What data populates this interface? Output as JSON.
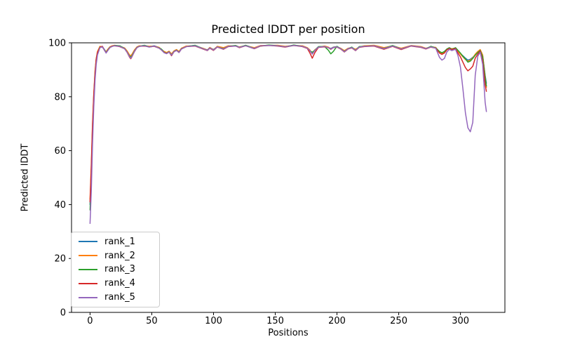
{
  "chart_data": {
    "type": "line",
    "title": "Predicted lDDT per position",
    "xlabel": "Positions",
    "ylabel": "Predicted lDDT",
    "xlim": [
      -15,
      336
    ],
    "ylim": [
      0,
      100
    ],
    "xticks": [
      0,
      50,
      100,
      150,
      200,
      250,
      300
    ],
    "yticks": [
      0,
      20,
      40,
      60,
      80,
      100
    ],
    "grid": false,
    "legend_position": "lower left",
    "x": [
      0,
      1,
      2,
      3,
      4,
      5,
      6,
      8,
      10,
      12,
      13,
      14,
      16,
      18,
      20,
      24,
      28,
      30,
      32,
      33,
      34,
      36,
      38,
      40,
      44,
      48,
      52,
      56,
      58,
      60,
      62,
      64,
      66,
      68,
      70,
      72,
      74,
      78,
      85,
      92,
      95,
      97,
      100,
      103,
      108,
      112,
      118,
      121,
      126,
      133,
      138,
      145,
      152,
      158,
      165,
      172,
      176,
      178,
      180,
      182,
      185,
      190,
      193,
      195,
      197,
      200,
      203,
      206,
      209,
      212,
      215,
      218,
      222,
      230,
      238,
      245,
      252,
      260,
      268,
      272,
      276,
      280,
      283,
      285,
      287,
      289,
      291,
      293,
      296,
      298,
      300,
      302,
      304,
      306,
      308,
      310,
      312,
      314,
      316,
      318,
      320,
      321
    ],
    "series": [
      {
        "name": "rank_1",
        "color": "#1f77b4",
        "values": [
          40,
          53,
          68,
          80,
          89,
          94,
          96.5,
          98.5,
          98.6,
          97.3,
          96.5,
          97.2,
          98.4,
          98.8,
          99,
          98.8,
          98,
          96.8,
          95.3,
          94.9,
          95.5,
          97.2,
          98.4,
          98.8,
          99,
          98.6,
          98.9,
          98.2,
          97.5,
          96.6,
          96.2,
          96.8,
          95.7,
          96.9,
          97.4,
          96.6,
          97.9,
          98.7,
          99,
          97.8,
          97.4,
          98.2,
          97.5,
          98.6,
          98,
          98.8,
          98.9,
          98.4,
          99,
          98.1,
          98.9,
          99.1,
          99,
          98.6,
          99.1,
          98.8,
          98.1,
          97.2,
          96.3,
          97.3,
          98.5,
          98.7,
          98.3,
          97.9,
          98.4,
          98.6,
          97.9,
          96.9,
          97.9,
          98.3,
          97.4,
          98.5,
          98.8,
          99,
          98,
          98.8,
          97.8,
          98.9,
          98.5,
          97.9,
          98.6,
          98.2,
          96.6,
          96.1,
          96.6,
          97.6,
          98.1,
          97.7,
          98.1,
          97,
          96,
          95.2,
          94.3,
          93.6,
          93.9,
          94.6,
          95.6,
          96.6,
          97.3,
          95.2,
          88,
          85
        ]
      },
      {
        "name": "rank_2",
        "color": "#ff7f0e",
        "values": [
          42,
          55,
          70,
          81,
          89.5,
          94.2,
          96.8,
          98.7,
          98.4,
          97.1,
          96.7,
          97.4,
          98.5,
          98.9,
          99.1,
          98.7,
          98.1,
          97,
          95.5,
          95.2,
          95.8,
          97.4,
          98.5,
          98.9,
          98.9,
          98.7,
          98.8,
          98.3,
          97.4,
          96.8,
          96.4,
          96.9,
          95.9,
          97,
          97.5,
          96.8,
          98,
          98.8,
          98.9,
          97.9,
          97.3,
          98.3,
          97.4,
          98.7,
          98.2,
          98.9,
          98.8,
          98.5,
          98.9,
          98.2,
          99,
          99,
          99.1,
          98.7,
          99,
          98.9,
          98.2,
          97.4,
          96,
          97.4,
          98.4,
          98.8,
          98.4,
          97.7,
          98.3,
          98.5,
          98,
          97.1,
          98,
          98.2,
          97.6,
          98.4,
          98.9,
          99.1,
          98.2,
          98.9,
          98,
          99,
          98.6,
          98,
          98.5,
          98.3,
          96.4,
          95.9,
          96.4,
          97.5,
          98,
          97.8,
          98,
          96.8,
          95.8,
          94.8,
          93.8,
          93.2,
          93.6,
          94.4,
          95.8,
          96.8,
          97.5,
          95.5,
          87.5,
          83.5
        ]
      },
      {
        "name": "rank_3",
        "color": "#2ca02c",
        "values": [
          38,
          51,
          66,
          79,
          88,
          93.5,
          96.2,
          98.4,
          98.5,
          97.2,
          96.4,
          97.1,
          98.3,
          98.7,
          99,
          98.9,
          97.9,
          96.6,
          95,
          94.6,
          95.3,
          97,
          98.3,
          98.7,
          99.1,
          98.5,
          98.8,
          98.1,
          97.6,
          96.5,
          96.1,
          96.7,
          95.5,
          96.8,
          97.3,
          96.5,
          97.8,
          98.6,
          99.1,
          97.7,
          97.2,
          98.1,
          97.3,
          98.5,
          97.8,
          98.7,
          99,
          98.3,
          99.1,
          97.9,
          98.8,
          99.2,
          98.9,
          98.5,
          99.2,
          98.7,
          98,
          97,
          96.5,
          97.2,
          98.6,
          98.6,
          97.3,
          95.9,
          96.8,
          98.7,
          97.8,
          96.8,
          97.8,
          98.4,
          97.2,
          98.6,
          98.7,
          98.9,
          97.9,
          99,
          97.7,
          98.9,
          98.4,
          97.8,
          98.7,
          98.1,
          96.8,
          96.3,
          96.8,
          97.7,
          98.2,
          97.6,
          98.2,
          97.2,
          96.2,
          95,
          94,
          92.8,
          93.2,
          94.2,
          95.4,
          96.4,
          97.1,
          94.8,
          87,
          84
        ]
      },
      {
        "name": "rank_4",
        "color": "#d62728",
        "values": [
          41,
          54,
          69,
          80.5,
          88.5,
          93.8,
          96.4,
          98.3,
          98.7,
          97,
          96.3,
          97,
          98.2,
          98.8,
          98.9,
          98.6,
          97.8,
          96.5,
          94.6,
          94.1,
          94.9,
          96.8,
          98.2,
          98.7,
          98.8,
          98.5,
          98.7,
          98,
          97.3,
          96.4,
          96,
          96.6,
          95.2,
          96.7,
          97.2,
          96.4,
          97.7,
          98.6,
          98.8,
          97.6,
          97.1,
          98,
          97.2,
          98.4,
          97.6,
          98.6,
          98.8,
          98.2,
          98.9,
          97.8,
          98.8,
          99,
          98.8,
          98.4,
          99,
          98.6,
          97.9,
          96.3,
          94.3,
          96.3,
          98.3,
          98.5,
          98.2,
          97.6,
          98.2,
          98.4,
          97.7,
          96.6,
          97.7,
          98.1,
          97.1,
          98.3,
          98.6,
          98.8,
          97.6,
          98.7,
          97.5,
          98.8,
          98.3,
          97.7,
          98.4,
          98,
          96.2,
          95.7,
          96.2,
          97.4,
          97.9,
          97.5,
          97.9,
          96.2,
          94.8,
          92.8,
          90.8,
          89.6,
          90.3,
          91.3,
          94.3,
          95.8,
          96.9,
          93.2,
          84.5,
          82
        ]
      },
      {
        "name": "rank_5",
        "color": "#9467bd",
        "values": [
          33,
          45,
          62,
          76,
          86,
          92,
          95.5,
          98.2,
          98.5,
          97,
          96.2,
          96.9,
          98.2,
          98.7,
          98.9,
          98.7,
          97.8,
          96.5,
          94.8,
          94.3,
          95,
          96.9,
          98.2,
          98.7,
          98.9,
          98.4,
          98.8,
          98,
          97.3,
          96.3,
          96,
          96.6,
          95.4,
          96.7,
          97.2,
          96.4,
          97.7,
          98.6,
          98.9,
          97.7,
          97.2,
          98.1,
          97.3,
          98.5,
          97.7,
          98.7,
          98.8,
          98.3,
          98.9,
          97.9,
          98.9,
          99,
          98.9,
          98.5,
          99,
          98.7,
          98,
          97.1,
          95.8,
          97.1,
          98.4,
          98.6,
          98.2,
          97.7,
          98.2,
          98.5,
          97.8,
          96.7,
          97.8,
          98.2,
          97.2,
          98.4,
          98.7,
          98.9,
          97.8,
          98.8,
          97.7,
          98.9,
          98.4,
          97.8,
          98.5,
          98,
          94.6,
          93.6,
          94.2,
          96.6,
          97.6,
          97.1,
          97.6,
          95.2,
          91,
          83,
          74,
          68.5,
          67,
          70.5,
          88,
          95,
          96.6,
          92,
          78,
          74.5
        ]
      }
    ]
  }
}
